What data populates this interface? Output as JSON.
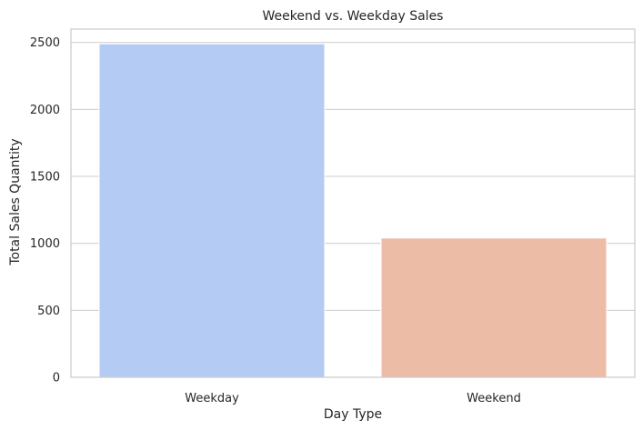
{
  "chart_data": {
    "type": "bar",
    "title": "Weekend vs. Weekday Sales",
    "xlabel": "Day Type",
    "ylabel": "Total Sales Quantity",
    "categories": [
      "Weekday",
      "Weekend"
    ],
    "values": [
      2490,
      1040
    ],
    "colors": [
      "#b4cbf4",
      "#ecbca7"
    ],
    "ylim": [
      0,
      2600
    ],
    "yticks": [
      0,
      500,
      1000,
      1500,
      2000,
      2500
    ],
    "ytick_labels": [
      "0",
      "500",
      "1000",
      "1500",
      "2000",
      "2500"
    ],
    "grid": "horizontal",
    "legend": "none"
  }
}
